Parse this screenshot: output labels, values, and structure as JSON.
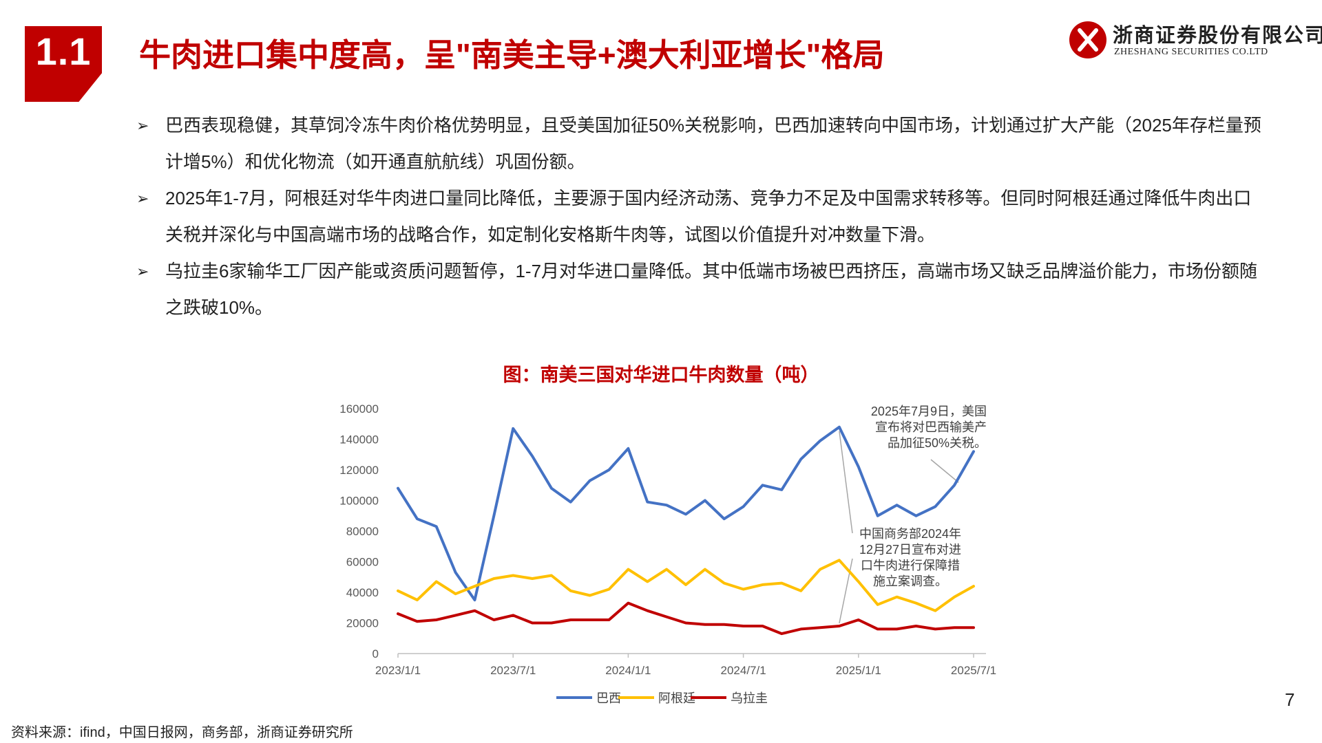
{
  "header": {
    "section_number": "1.1",
    "title": "牛肉进口集中度高，呈\"南美主导+澳大利亚增长\"格局"
  },
  "logo": {
    "cn": "浙商证券股份有限公司",
    "en": "ZHESHANG SECURITIES CO.LTD"
  },
  "bullets": [
    {
      "marker": "➢",
      "text": "巴西表现稳健，其草饲冷冻牛肉价格优势明显，且受美国加征50%关税影响，巴西加速转向中国市场，计划通过扩大产能（2025年存栏量预计增5%）和优化物流（如开通直航航线）巩固份额。"
    },
    {
      "marker": "➢",
      "text": "2025年1-7月，阿根廷对华牛肉进口量同比降低，主要源于国内经济动荡、竞争力不足及中国需求转移等。但同时阿根廷通过降低牛肉出口关税并深化与中国高端市场的战略合作，如定制化安格斯牛肉等，试图以价值提升对冲数量下滑。"
    },
    {
      "marker": "➢",
      "text": "乌拉圭6家输华工厂因产能或资质问题暂停，1-7月对华进口量降低。其中低端市场被巴西挤压，高端市场又缺乏品牌溢价能力，市场份额随之跌破10%。"
    }
  ],
  "chart_data": {
    "type": "line",
    "title": "图：南美三国对华进口牛肉数量（吨）",
    "xlabel": "",
    "ylabel": "",
    "ylim": [
      0,
      160000
    ],
    "yticks": [
      0,
      20000,
      40000,
      60000,
      80000,
      100000,
      120000,
      140000,
      160000
    ],
    "x": [
      "2023/1",
      "2023/2",
      "2023/3",
      "2023/4",
      "2023/5",
      "2023/6",
      "2023/7",
      "2023/8",
      "2023/9",
      "2023/10",
      "2023/11",
      "2023/12",
      "2024/1",
      "2024/2",
      "2024/3",
      "2024/4",
      "2024/5",
      "2024/6",
      "2024/7",
      "2024/8",
      "2024/9",
      "2024/10",
      "2024/11",
      "2024/12",
      "2025/1",
      "2025/2",
      "2025/3",
      "2025/4",
      "2025/5",
      "2025/6",
      "2025/7"
    ],
    "xticks": [
      "2023/1/1",
      "2023/7/1",
      "2024/1/1",
      "2024/7/1",
      "2025/1/1",
      "2025/7/1"
    ],
    "xtick_index": [
      0,
      6,
      12,
      18,
      24,
      30
    ],
    "series": [
      {
        "name": "巴西",
        "color": "#4472c4",
        "values": [
          108000,
          88000,
          83000,
          53000,
          35000,
          90000,
          147000,
          129000,
          108000,
          99000,
          113000,
          120000,
          134000,
          99000,
          97000,
          91000,
          100000,
          88000,
          96000,
          110000,
          107000,
          127000,
          139000,
          148000,
          122000,
          90000,
          97000,
          90000,
          96000,
          110000,
          132000
        ]
      },
      {
        "name": "阿根廷",
        "color": "#ffc000",
        "values": [
          41000,
          35000,
          47000,
          39000,
          44000,
          49000,
          51000,
          49000,
          51000,
          41000,
          38000,
          42000,
          55000,
          47000,
          55000,
          45000,
          55000,
          46000,
          42000,
          45000,
          46000,
          41000,
          55000,
          61000,
          47000,
          32000,
          37000,
          33000,
          28000,
          37000,
          44000
        ]
      },
      {
        "name": "乌拉圭",
        "color": "#c00000",
        "values": [
          26000,
          21000,
          22000,
          25000,
          28000,
          22000,
          25000,
          20000,
          20000,
          22000,
          22000,
          22000,
          33000,
          28000,
          24000,
          20000,
          19000,
          19000,
          18000,
          18000,
          13000,
          16000,
          17000,
          18000,
          22000,
          16000,
          16000,
          18000,
          16000,
          17000,
          17000
        ]
      }
    ],
    "annotations": [
      {
        "text_lines": [
          "2025年7月9日，美国",
          "宣布将对巴西输美产",
          "品加征50%关税。"
        ],
        "target_index": 29,
        "series": "巴西"
      },
      {
        "text_lines": [
          "中国商务部2024年",
          "12月27日宣布对进",
          "口牛肉进行保障措",
          "施立案调查。"
        ],
        "targets": [
          {
            "series": "巴西",
            "index": 23
          },
          {
            "series": "乌拉圭",
            "index": 23
          }
        ]
      }
    ],
    "legend_position": "bottom"
  },
  "source": "资料来源：ifind，中国日报网，商务部，浙商证券研究所",
  "page_number": "7"
}
